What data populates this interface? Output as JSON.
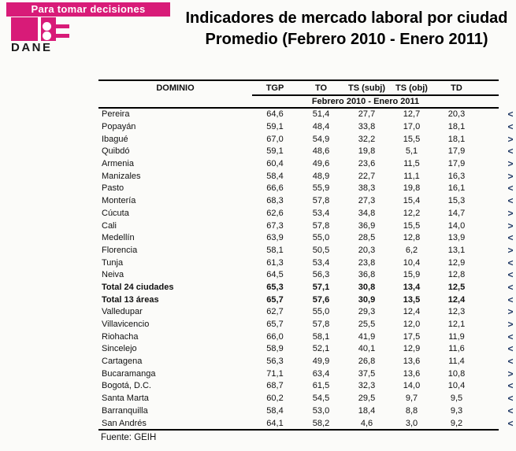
{
  "logo": {
    "banner_text": "Para tomar decisiones",
    "wordmark": "DANE"
  },
  "title": {
    "line1": "Indicadores de mercado laboral por ciudad",
    "line2": "Promedio (Febrero 2010 - Enero 2011)"
  },
  "colors": {
    "brand_magenta": "#d81b78",
    "arrow_navy": "#1f3864"
  },
  "table": {
    "columns": {
      "domain": "DOMINIO",
      "tgp": "TGP",
      "to": "TO",
      "ts_subj": "TS (subj)",
      "ts_obj": "TS (obj)",
      "td": "TD"
    },
    "period_header": "Febrero 2010 - Enero 2011",
    "rows": [
      {
        "domain": "Pereira",
        "tgp": "64,6",
        "to": "51,4",
        "ts_subj": "27,7",
        "ts_obj": "12,7",
        "td": "20,3",
        "arrow": "<",
        "bold": false
      },
      {
        "domain": "Popayán",
        "tgp": "59,1",
        "to": "48,4",
        "ts_subj": "33,8",
        "ts_obj": "17,0",
        "td": "18,1",
        "arrow": "<",
        "bold": false
      },
      {
        "domain": "Ibagué",
        "tgp": "67,0",
        "to": "54,9",
        "ts_subj": "32,2",
        "ts_obj": "15,5",
        "td": "18,1",
        "arrow": ">",
        "bold": false
      },
      {
        "domain": "Quibdó",
        "tgp": "59,1",
        "to": "48,6",
        "ts_subj": "19,8",
        "ts_obj": "5,1",
        "td": "17,9",
        "arrow": "<",
        "bold": false
      },
      {
        "domain": "Armenia",
        "tgp": "60,4",
        "to": "49,6",
        "ts_subj": "23,6",
        "ts_obj": "11,5",
        "td": "17,9",
        "arrow": ">",
        "bold": false
      },
      {
        "domain": "Manizales",
        "tgp": "58,4",
        "to": "48,9",
        "ts_subj": "22,7",
        "ts_obj": "11,1",
        "td": "16,3",
        "arrow": ">",
        "bold": false
      },
      {
        "domain": "Pasto",
        "tgp": "66,6",
        "to": "55,9",
        "ts_subj": "38,3",
        "ts_obj": "19,8",
        "td": "16,1",
        "arrow": "<",
        "bold": false
      },
      {
        "domain": "Montería",
        "tgp": "68,3",
        "to": "57,8",
        "ts_subj": "27,3",
        "ts_obj": "15,4",
        "td": "15,3",
        "arrow": "<",
        "bold": false
      },
      {
        "domain": "Cúcuta",
        "tgp": "62,6",
        "to": "53,4",
        "ts_subj": "34,8",
        "ts_obj": "12,2",
        "td": "14,7",
        "arrow": ">",
        "bold": false
      },
      {
        "domain": "Cali",
        "tgp": "67,3",
        "to": "57,8",
        "ts_subj": "36,9",
        "ts_obj": "15,5",
        "td": "14,0",
        "arrow": ">",
        "bold": false
      },
      {
        "domain": "Medellín",
        "tgp": "63,9",
        "to": "55,0",
        "ts_subj": "28,5",
        "ts_obj": "12,8",
        "td": "13,9",
        "arrow": "<",
        "bold": false
      },
      {
        "domain": "Florencia",
        "tgp": "58,1",
        "to": "50,5",
        "ts_subj": "20,3",
        "ts_obj": "6,2",
        "td": "13,1",
        "arrow": ">",
        "bold": false
      },
      {
        "domain": "Tunja",
        "tgp": "61,3",
        "to": "53,4",
        "ts_subj": "23,8",
        "ts_obj": "10,4",
        "td": "12,9",
        "arrow": "<",
        "bold": false
      },
      {
        "domain": "Neiva",
        "tgp": "64,5",
        "to": "56,3",
        "ts_subj": "36,8",
        "ts_obj": "15,9",
        "td": "12,8",
        "arrow": "<",
        "bold": false
      },
      {
        "domain": "Total 24 ciudades",
        "tgp": "65,3",
        "to": "57,1",
        "ts_subj": "30,8",
        "ts_obj": "13,4",
        "td": "12,5",
        "arrow": "<",
        "bold": true
      },
      {
        "domain": "Total 13 áreas",
        "tgp": "65,7",
        "to": "57,6",
        "ts_subj": "30,9",
        "ts_obj": "13,5",
        "td": "12,4",
        "arrow": "<",
        "bold": true
      },
      {
        "domain": "Valledupar",
        "tgp": "62,7",
        "to": "55,0",
        "ts_subj": "29,3",
        "ts_obj": "12,4",
        "td": "12,3",
        "arrow": ">",
        "bold": false
      },
      {
        "domain": "Villavicencio",
        "tgp": "65,7",
        "to": "57,8",
        "ts_subj": "25,5",
        "ts_obj": "12,0",
        "td": "12,1",
        "arrow": ">",
        "bold": false
      },
      {
        "domain": "Riohacha",
        "tgp": "66,0",
        "to": "58,1",
        "ts_subj": "41,9",
        "ts_obj": "17,5",
        "td": "11,9",
        "arrow": "<",
        "bold": false
      },
      {
        "domain": "Sincelejo",
        "tgp": "58,9",
        "to": "52,1",
        "ts_subj": "40,1",
        "ts_obj": "12,9",
        "td": "11,6",
        "arrow": "<",
        "bold": false
      },
      {
        "domain": "Cartagena",
        "tgp": "56,3",
        "to": "49,9",
        "ts_subj": "26,8",
        "ts_obj": "13,6",
        "td": "11,4",
        "arrow": "<",
        "bold": false
      },
      {
        "domain": "Bucaramanga",
        "tgp": "71,1",
        "to": "63,4",
        "ts_subj": "37,5",
        "ts_obj": "13,6",
        "td": "10,8",
        "arrow": ">",
        "bold": false
      },
      {
        "domain": "Bogotá, D.C.",
        "tgp": "68,7",
        "to": "61,5",
        "ts_subj": "32,3",
        "ts_obj": "14,0",
        "td": "10,4",
        "arrow": "<",
        "bold": false
      },
      {
        "domain": "Santa Marta",
        "tgp": "60,2",
        "to": "54,5",
        "ts_subj": "29,5",
        "ts_obj": "9,7",
        "td": "9,5",
        "arrow": "<",
        "bold": false
      },
      {
        "domain": "Barranquilla",
        "tgp": "58,4",
        "to": "53,0",
        "ts_subj": "18,4",
        "ts_obj": "8,8",
        "td": "9,3",
        "arrow": "<",
        "bold": false
      },
      {
        "domain": "San Andrés",
        "tgp": "64,1",
        "to": "58,2",
        "ts_subj": "4,6",
        "ts_obj": "3,0",
        "td": "9,2",
        "arrow": "<",
        "bold": false
      }
    ]
  },
  "footer": {
    "source": "Fuente: GEIH"
  }
}
